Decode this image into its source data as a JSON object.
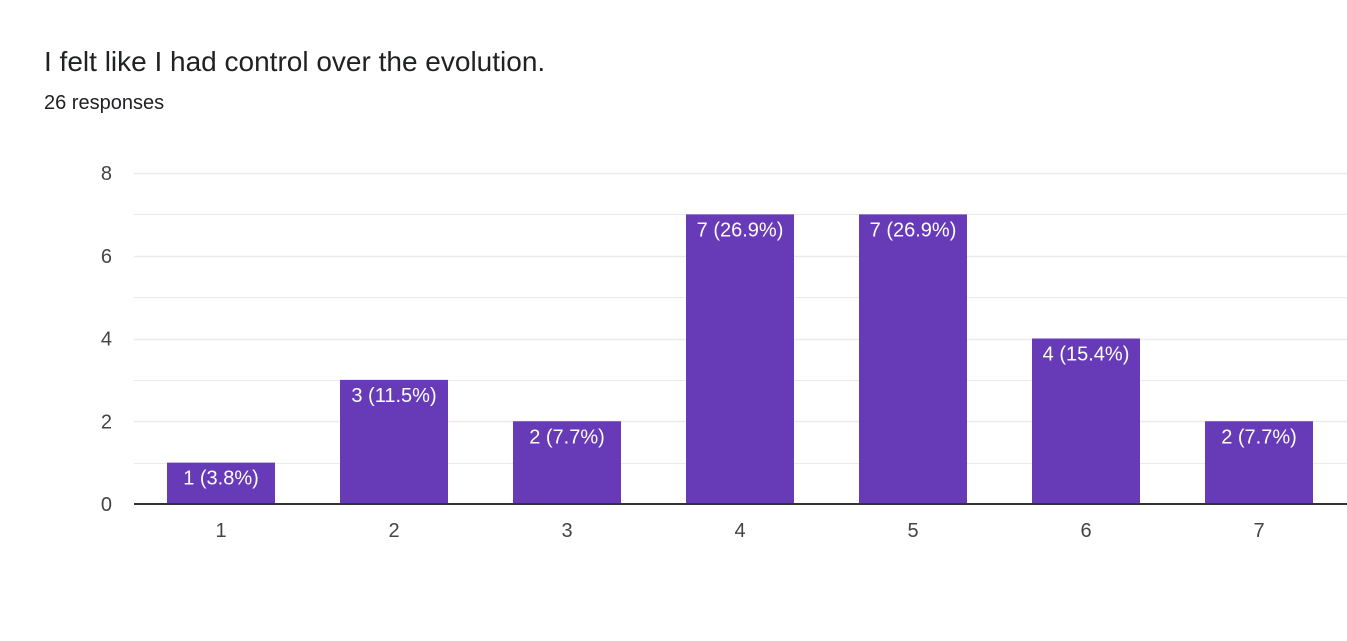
{
  "question": {
    "title": "I felt like I had control over the evolution.",
    "responses": "26 responses"
  },
  "colors": {
    "bar": "#673ab7",
    "gridline": "#ebebeb",
    "baseline": "#333333",
    "label_text": "#ffffff",
    "axis_text": "#444444"
  },
  "chart_data": {
    "type": "bar",
    "categories": [
      "1",
      "2",
      "3",
      "4",
      "5",
      "6",
      "7"
    ],
    "values": [
      1,
      3,
      2,
      7,
      7,
      4,
      2
    ],
    "data_labels": [
      "1 (3.8%)",
      "3 (11.5%)",
      "2 (7.7%)",
      "7 (26.9%)",
      "7 (26.9%)",
      "4 (15.4%)",
      "2 (7.7%)"
    ],
    "y_ticks": [
      "0",
      "2",
      "4",
      "6",
      "8"
    ],
    "ylim": [
      0,
      8
    ],
    "grid": true,
    "legend": "none"
  }
}
